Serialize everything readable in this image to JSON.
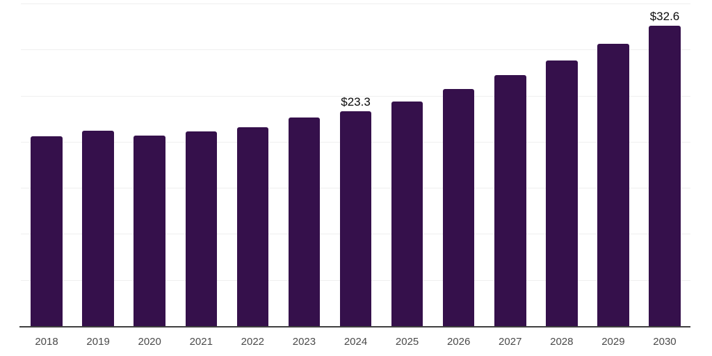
{
  "chart_data": {
    "type": "bar",
    "title": "",
    "xlabel": "",
    "ylabel": "",
    "categories": [
      "2018",
      "2019",
      "2020",
      "2021",
      "2022",
      "2023",
      "2024",
      "2025",
      "2026",
      "2027",
      "2028",
      "2029",
      "2030"
    ],
    "values": [
      20.6,
      21.2,
      20.7,
      21.1,
      21.6,
      22.6,
      23.3,
      24.4,
      25.7,
      27.2,
      28.8,
      30.6,
      32.6
    ],
    "point_labels": [
      "",
      "",
      "",
      "",
      "",
      "",
      "$23.3",
      "",
      "",
      "",
      "",
      "",
      "$32.6"
    ],
    "ylim": [
      0,
      35
    ],
    "grid_interval": 5,
    "grid": true,
    "legend": false,
    "y_tick_labels_visible": false
  },
  "colors": {
    "background": "#FFFFFF",
    "bar": "#35104B",
    "gridline": "#EFEFEF",
    "axis_line": "#3F3F3F",
    "tick_label": "#4A4A4A",
    "value_label": "#0A0A0A"
  }
}
